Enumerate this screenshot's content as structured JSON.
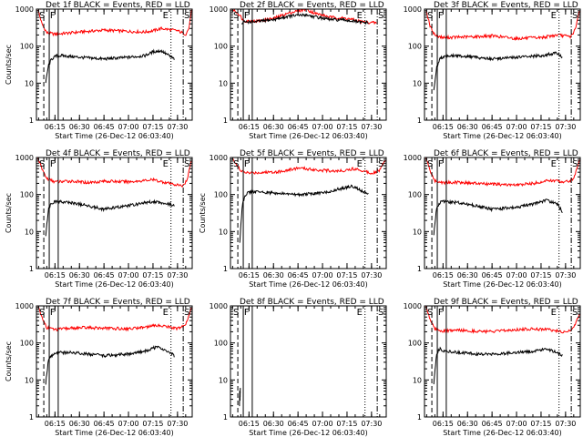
{
  "chart_data": [
    {
      "type": "line",
      "title": "Det 1f BLACK = Events, RED = LLD",
      "xlabel": "Start Time (26-Dec-12 06:03:40)",
      "ylabel": "Counts/sec",
      "yscale": "log",
      "ylim": [
        1,
        1000
      ],
      "xlim": [
        "06:03:40",
        "07:39:00"
      ],
      "x_ticks": [
        "06:15",
        "06:30",
        "06:45",
        "07:00",
        "07:15",
        "07:30"
      ],
      "y_ticks": [
        "1",
        "10",
        "100",
        "1000"
      ],
      "markers": [
        "S",
        "F",
        "E",
        "S"
      ],
      "colors": {
        "events": "#000000",
        "lld": "#ff0000"
      },
      "series": [
        {
          "color": "#ff0000",
          "x": [
            "06:04:30",
            "06:07",
            "06:10",
            "06:15",
            "06:20",
            "06:30",
            "06:45",
            "07:00",
            "07:10",
            "07:15",
            "07:20",
            "07:30",
            "07:35",
            "07:37",
            "07:38:30"
          ],
          "y": [
            1000,
            400,
            230,
            210,
            220,
            240,
            270,
            250,
            240,
            260,
            300,
            260,
            210,
            300,
            900
          ]
        },
        {
          "color": "#000000",
          "x": [
            "06:09:20",
            "06:11",
            "06:13",
            "06:16",
            "06:20",
            "06:30",
            "06:45",
            "07:00",
            "07:10",
            "07:15",
            "07:20",
            "07:28"
          ],
          "y": [
            10,
            30,
            45,
            55,
            55,
            50,
            45,
            50,
            55,
            70,
            75,
            45
          ]
        }
      ],
      "vlines": [
        {
          "x": "06:08:10",
          "style": "dashed"
        },
        {
          "x": "06:11:30",
          "style": "solid"
        },
        {
          "x": "06:17:00",
          "style": "solid"
        },
        {
          "x": "07:26:00",
          "style": "dotted"
        },
        {
          "x": "07:33:30",
          "style": "dashdot"
        }
      ]
    },
    {
      "type": "line",
      "title": "Det 2f BLACK = Events, RED = LLD",
      "xlabel": "Start Time (26-Dec-12 06:03:40)",
      "ylabel": "",
      "yscale": "log",
      "ylim": [
        1,
        1000
      ],
      "xlim": [
        "06:03:40",
        "07:39:00"
      ],
      "x_ticks": [
        "06:15",
        "06:30",
        "06:45",
        "07:00",
        "07:15",
        "07:30"
      ],
      "y_ticks": [
        "1",
        "10",
        "100",
        "1000"
      ],
      "markers": [
        "S",
        "F",
        "E",
        "S"
      ],
      "colors": {
        "events": "#000000",
        "lld": "#ff0000"
      },
      "series": [
        {
          "color": "#ff0000",
          "x": [
            "06:04:30",
            "06:08",
            "06:12",
            "06:20",
            "06:30",
            "06:40",
            "06:50",
            "06:55",
            "07:05",
            "07:15",
            "07:25",
            "07:33"
          ],
          "y": [
            1000,
            800,
            480,
            470,
            560,
            800,
            1000,
            780,
            600,
            560,
            450,
            420
          ]
        },
        {
          "color": "#000000",
          "x": [
            "06:10:30",
            "06:12",
            "06:20",
            "06:30",
            "06:40",
            "06:50",
            "06:55",
            "07:05",
            "07:15",
            "07:25",
            "07:28"
          ],
          "y": [
            400,
            450,
            460,
            520,
            650,
            700,
            620,
            520,
            500,
            430,
            430
          ]
        }
      ],
      "vlines": [
        {
          "x": "06:08:10",
          "style": "dashed"
        },
        {
          "x": "06:11:30",
          "style": "solid"
        },
        {
          "x": "06:17:00",
          "style": "solid"
        },
        {
          "x": "07:26:00",
          "style": "dotted"
        },
        {
          "x": "07:33:30",
          "style": "dashdot"
        }
      ]
    },
    {
      "type": "line",
      "title": "Det 3f BLACK = Events, RED = LLD",
      "xlabel": "Start Time (26-Dec-12 06:03:40)",
      "ylabel": "",
      "yscale": "log",
      "ylim": [
        1,
        1000
      ],
      "xlim": [
        "06:03:40",
        "07:39:00"
      ],
      "x_ticks": [
        "06:15",
        "06:30",
        "06:45",
        "07:00",
        "07:15",
        "07:30"
      ],
      "y_ticks": [
        "1",
        "10",
        "100",
        "1000"
      ],
      "markers": [
        "S",
        "F",
        "E",
        "S"
      ],
      "colors": {
        "events": "#000000",
        "lld": "#ff0000"
      },
      "series": [
        {
          "color": "#ff0000",
          "x": [
            "06:04:30",
            "06:07",
            "06:10",
            "06:15",
            "06:25",
            "06:35",
            "06:45",
            "07:00",
            "07:15",
            "07:25",
            "07:33",
            "07:36",
            "07:38:30"
          ],
          "y": [
            1000,
            350,
            200,
            170,
            175,
            180,
            190,
            160,
            170,
            200,
            180,
            280,
            900
          ]
        },
        {
          "color": "#000000",
          "x": [
            "06:09:20",
            "06:11",
            "06:13",
            "06:16",
            "06:25",
            "06:35",
            "06:45",
            "07:00",
            "07:15",
            "07:25",
            "07:28"
          ],
          "y": [
            6,
            25,
            45,
            55,
            55,
            50,
            45,
            50,
            55,
            65,
            50
          ]
        }
      ],
      "vlines": [
        {
          "x": "06:08:10",
          "style": "dashed"
        },
        {
          "x": "06:11:30",
          "style": "solid"
        },
        {
          "x": "06:17:00",
          "style": "solid"
        },
        {
          "x": "07:26:00",
          "style": "dotted"
        },
        {
          "x": "07:33:30",
          "style": "dashdot"
        }
      ]
    },
    {
      "type": "line",
      "title": "Det 4f BLACK = Events, RED = LLD",
      "xlabel": "Start Time (26-Dec-12 06:03:40)",
      "ylabel": "Counts/sec",
      "yscale": "log",
      "ylim": [
        1,
        1000
      ],
      "xlim": [
        "06:03:40",
        "07:39:00"
      ],
      "x_ticks": [
        "06:15",
        "06:30",
        "06:45",
        "07:00",
        "07:15",
        "07:30"
      ],
      "y_ticks": [
        "1",
        "10",
        "100",
        "1000"
      ],
      "markers": [
        "S",
        "F",
        "E",
        "S"
      ],
      "colors": {
        "events": "#000000",
        "lld": "#ff0000"
      },
      "series": [
        {
          "color": "#ff0000",
          "x": [
            "06:04:30",
            "06:07",
            "06:10",
            "06:15",
            "06:25",
            "06:35",
            "06:45",
            "07:00",
            "07:15",
            "07:25",
            "07:33",
            "07:36",
            "07:38:30"
          ],
          "y": [
            1000,
            500,
            270,
            220,
            230,
            210,
            230,
            220,
            250,
            200,
            170,
            250,
            900
          ]
        },
        {
          "color": "#000000",
          "x": [
            "06:09:20",
            "06:11",
            "06:13",
            "06:16",
            "06:25",
            "06:35",
            "06:45",
            "07:00",
            "07:15",
            "07:25",
            "07:28"
          ],
          "y": [
            8,
            40,
            60,
            65,
            60,
            50,
            40,
            50,
            65,
            55,
            50
          ]
        }
      ],
      "vlines": [
        {
          "x": "06:08:10",
          "style": "dashed"
        },
        {
          "x": "06:11:30",
          "style": "solid"
        },
        {
          "x": "06:17:00",
          "style": "solid"
        },
        {
          "x": "07:26:00",
          "style": "dotted"
        },
        {
          "x": "07:33:30",
          "style": "dashdot"
        }
      ]
    },
    {
      "type": "line",
      "title": "Det 5f BLACK = Events, RED = LLD",
      "xlabel": "Start Time (26-Dec-12 06:03:40)",
      "ylabel": "Counts/sec",
      "yscale": "log",
      "ylim": [
        1,
        1000
      ],
      "xlim": [
        "06:03:40",
        "07:39:00"
      ],
      "x_ticks": [
        "06:15",
        "06:30",
        "06:45",
        "07:00",
        "07:15",
        "07:30"
      ],
      "y_ticks": [
        "1",
        "10",
        "100",
        "1000"
      ],
      "markers": [
        "S",
        "F",
        "E",
        "S"
      ],
      "colors": {
        "events": "#000000",
        "lld": "#ff0000"
      },
      "series": [
        {
          "color": "#ff0000",
          "x": [
            "06:04:30",
            "06:07",
            "06:10",
            "06:15",
            "06:25",
            "06:35",
            "06:45",
            "07:00",
            "07:10",
            "07:20",
            "07:30",
            "07:35",
            "07:38:30"
          ],
          "y": [
            1000,
            700,
            420,
            380,
            400,
            420,
            520,
            450,
            430,
            500,
            380,
            450,
            900
          ]
        },
        {
          "color": "#000000",
          "x": [
            "06:09:20",
            "06:11",
            "06:13",
            "06:16",
            "06:25",
            "06:35",
            "06:45",
            "07:00",
            "07:10",
            "07:18",
            "07:25",
            "07:28"
          ],
          "y": [
            5,
            60,
            100,
            120,
            115,
            105,
            100,
            110,
            140,
            170,
            120,
            100
          ]
        }
      ],
      "vlines": [
        {
          "x": "06:08:10",
          "style": "dashed"
        },
        {
          "x": "06:11:30",
          "style": "solid"
        },
        {
          "x": "06:17:00",
          "style": "solid"
        },
        {
          "x": "07:26:00",
          "style": "dotted"
        },
        {
          "x": "07:33:30",
          "style": "dashdot"
        }
      ]
    },
    {
      "type": "line",
      "title": "Det 6f BLACK = Events, RED = LLD",
      "xlabel": "Start Time (26-Dec-12 06:03:40)",
      "ylabel": "",
      "yscale": "log",
      "ylim": [
        1,
        1000
      ],
      "xlim": [
        "06:03:40",
        "07:39:00"
      ],
      "x_ticks": [
        "06:15",
        "06:30",
        "06:45",
        "07:00",
        "07:15",
        "07:30"
      ],
      "y_ticks": [
        "1",
        "10",
        "100",
        "1000"
      ],
      "markers": [
        "S",
        "F",
        "E",
        "S"
      ],
      "colors": {
        "events": "#000000",
        "lld": "#ff0000"
      },
      "series": [
        {
          "color": "#ff0000",
          "x": [
            "06:04:30",
            "06:07",
            "06:10",
            "06:15",
            "06:25",
            "06:35",
            "06:45",
            "07:00",
            "07:10",
            "07:20",
            "07:30",
            "07:35",
            "07:38:30"
          ],
          "y": [
            1000,
            450,
            230,
            210,
            215,
            200,
            190,
            180,
            200,
            240,
            220,
            260,
            900
          ]
        },
        {
          "color": "#000000",
          "x": [
            "06:09:20",
            "06:11",
            "06:13",
            "06:16",
            "06:25",
            "06:35",
            "06:45",
            "07:00",
            "07:10",
            "07:18",
            "07:25",
            "07:28"
          ],
          "y": [
            8,
            40,
            60,
            65,
            60,
            50,
            40,
            45,
            55,
            70,
            55,
            35
          ]
        }
      ],
      "vlines": [
        {
          "x": "06:08:10",
          "style": "dashed"
        },
        {
          "x": "06:11:30",
          "style": "solid"
        },
        {
          "x": "06:17:00",
          "style": "solid"
        },
        {
          "x": "07:26:00",
          "style": "dotted"
        },
        {
          "x": "07:33:30",
          "style": "dashdot"
        }
      ]
    },
    {
      "type": "line",
      "title": "Det 7f BLACK = Events, RED = LLD",
      "xlabel": "Start Time (26-Dec-12 06:03:40)",
      "ylabel": "Counts/sec",
      "yscale": "log",
      "ylim": [
        1,
        1000
      ],
      "xlim": [
        "06:03:40",
        "07:39:00"
      ],
      "x_ticks": [
        "06:15",
        "06:30",
        "06:45",
        "07:00",
        "07:15",
        "07:30"
      ],
      "y_ticks": [
        "1",
        "10",
        "100",
        "1000"
      ],
      "markers": [
        "S",
        "F",
        "E",
        "S"
      ],
      "colors": {
        "events": "#000000",
        "lld": "#ff0000"
      },
      "series": [
        {
          "color": "#ff0000",
          "x": [
            "06:04:30",
            "06:07",
            "06:10",
            "06:15",
            "06:25",
            "06:35",
            "06:45",
            "07:00",
            "07:10",
            "07:20",
            "07:30",
            "07:35",
            "07:38:30"
          ],
          "y": [
            1000,
            500,
            260,
            230,
            250,
            260,
            250,
            240,
            270,
            300,
            240,
            300,
            900
          ]
        },
        {
          "color": "#000000",
          "x": [
            "06:09:20",
            "06:11",
            "06:13",
            "06:16",
            "06:25",
            "06:35",
            "06:45",
            "07:00",
            "07:10",
            "07:18",
            "07:25",
            "07:28"
          ],
          "y": [
            8,
            35,
            45,
            55,
            55,
            50,
            45,
            50,
            60,
            80,
            55,
            45
          ]
        }
      ],
      "vlines": [
        {
          "x": "06:08:10",
          "style": "dashed"
        },
        {
          "x": "06:11:30",
          "style": "solid"
        },
        {
          "x": "06:17:00",
          "style": "solid"
        },
        {
          "x": "07:26:00",
          "style": "dotted"
        },
        {
          "x": "07:33:30",
          "style": "dashdot"
        }
      ]
    },
    {
      "type": "line",
      "title": "Det 8f BLACK = Events, RED = LLD",
      "xlabel": "Start Time (26-Dec-12 06:03:40)",
      "ylabel": "",
      "yscale": "log",
      "ylim": [
        1,
        1000
      ],
      "xlim": [
        "06:03:40",
        "07:39:00"
      ],
      "x_ticks": [
        "06:15",
        "06:30",
        "06:45",
        "07:00",
        "07:15",
        "07:30"
      ],
      "y_ticks": [
        "1",
        "10",
        "100",
        "1000"
      ],
      "markers": [
        "S",
        "F",
        "E",
        "S"
      ],
      "colors": {
        "events": "#000000",
        "lld": "#ff0000"
      },
      "series": [
        {
          "color": "#000000",
          "x": [
            "06:09:10",
            "06:09:20",
            "06:09:30",
            "06:09:40"
          ],
          "y": [
            2,
            5,
            3,
            6
          ]
        }
      ],
      "vlines": [
        {
          "x": "06:08:10",
          "style": "dashed"
        },
        {
          "x": "06:11:30",
          "style": "solid"
        },
        {
          "x": "06:17:00",
          "style": "solid"
        },
        {
          "x": "07:26:00",
          "style": "dotted"
        },
        {
          "x": "07:33:30",
          "style": "dashdot"
        }
      ]
    },
    {
      "type": "line",
      "title": "Det 9f BLACK = Events, RED = LLD",
      "xlabel": "Start Time (26-Dec-12 06:03:40)",
      "ylabel": "",
      "yscale": "log",
      "ylim": [
        1,
        1000
      ],
      "xlim": [
        "06:03:40",
        "07:39:00"
      ],
      "x_ticks": [
        "06:15",
        "06:30",
        "06:45",
        "07:00",
        "07:15",
        "07:30"
      ],
      "y_ticks": [
        "1",
        "10",
        "100",
        "1000"
      ],
      "markers": [
        "S",
        "F",
        "E",
        "S"
      ],
      "colors": {
        "events": "#000000",
        "lld": "#ff0000"
      },
      "series": [
        {
          "color": "#ff0000",
          "x": [
            "06:04:30",
            "06:07",
            "06:10",
            "06:15",
            "06:25",
            "06:35",
            "06:45",
            "07:00",
            "07:10",
            "07:20",
            "07:30",
            "07:35",
            "07:38:30"
          ],
          "y": [
            1000,
            450,
            240,
            210,
            220,
            210,
            200,
            230,
            240,
            230,
            190,
            260,
            600
          ]
        },
        {
          "color": "#000000",
          "x": [
            "06:09:20",
            "06:11",
            "06:13",
            "06:16",
            "06:25",
            "06:35",
            "06:45",
            "07:00",
            "07:10",
            "07:18",
            "07:25",
            "07:28"
          ],
          "y": [
            8,
            50,
            70,
            60,
            55,
            50,
            50,
            55,
            60,
            70,
            55,
            45
          ]
        }
      ],
      "vlines": [
        {
          "x": "06:08:10",
          "style": "dashed"
        },
        {
          "x": "06:11:30",
          "style": "solid"
        },
        {
          "x": "06:17:00",
          "style": "solid"
        },
        {
          "x": "07:26:00",
          "style": "dotted"
        },
        {
          "x": "07:33:30",
          "style": "dashdot"
        }
      ]
    }
  ]
}
